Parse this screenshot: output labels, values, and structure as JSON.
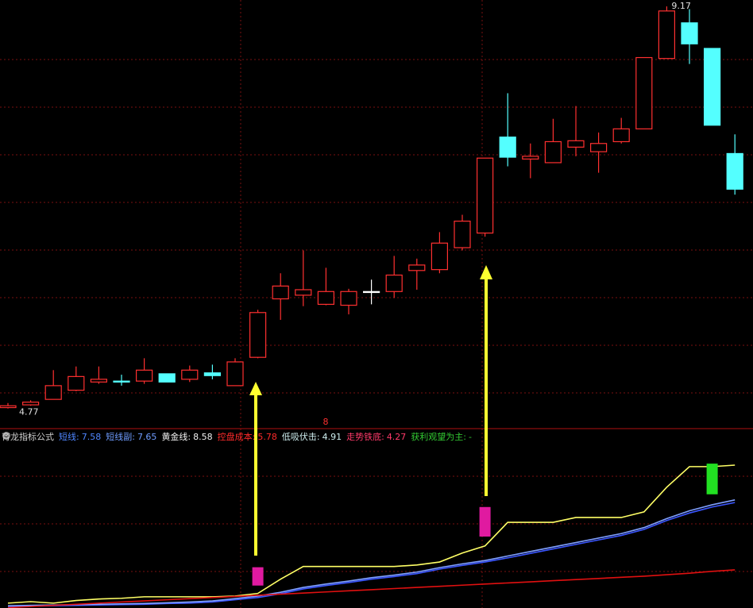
{
  "chart_data": {
    "type": "candlestick",
    "up_color": "#ff3030",
    "down_color": "#54ffff",
    "flat_color": "#ffffff",
    "ylim": [
      4.55,
      9.24
    ],
    "candles": [
      [
        4.78,
        4.83,
        4.77,
        4.8
      ],
      [
        4.81,
        4.86,
        4.8,
        4.84
      ],
      [
        4.87,
        5.19,
        4.87,
        5.02
      ],
      [
        4.97,
        5.23,
        4.96,
        5.12
      ],
      [
        5.06,
        5.23,
        5.04,
        5.09
      ],
      [
        5.07,
        5.14,
        5.02,
        5.06
      ],
      [
        5.07,
        5.32,
        5.04,
        5.19
      ],
      [
        5.15,
        5.15,
        5.06,
        5.06
      ],
      [
        5.09,
        5.24,
        5.06,
        5.19
      ],
      [
        5.16,
        5.25,
        5.09,
        5.13
      ],
      [
        5.02,
        5.32,
        5.02,
        5.28
      ],
      [
        5.33,
        5.85,
        5.32,
        5.82
      ],
      [
        5.97,
        6.25,
        5.74,
        6.11
      ],
      [
        6.01,
        6.5,
        5.89,
        6.07
      ],
      [
        5.91,
        6.31,
        5.9,
        6.05
      ],
      [
        5.9,
        6.08,
        5.8,
        6.05
      ],
      [
        6.05,
        6.18,
        5.91,
        6.05
      ],
      [
        6.05,
        6.44,
        5.98,
        6.23
      ],
      [
        6.28,
        6.41,
        6.07,
        6.34
      ],
      [
        6.29,
        6.7,
        6.25,
        6.58
      ],
      [
        6.53,
        6.89,
        6.5,
        6.82
      ],
      [
        6.69,
        7.51,
        6.65,
        7.51
      ],
      [
        7.74,
        8.22,
        7.42,
        7.52
      ],
      [
        7.5,
        7.67,
        7.29,
        7.53
      ],
      [
        7.46,
        7.94,
        7.46,
        7.69
      ],
      [
        7.63,
        8.08,
        7.53,
        7.7
      ],
      [
        7.58,
        7.79,
        7.35,
        7.67
      ],
      [
        7.69,
        7.95,
        7.67,
        7.83
      ],
      [
        7.83,
        8.61,
        7.83,
        8.61
      ],
      [
        8.6,
        9.17,
        8.6,
        9.12
      ],
      [
        8.99,
        9.14,
        8.54,
        8.76
      ],
      [
        8.71,
        8.71,
        7.87,
        7.87
      ],
      [
        7.56,
        7.77,
        7.11,
        7.17
      ]
    ],
    "high_index": 29,
    "low_index": 0,
    "marker": "8",
    "indicator": {
      "title": "育龙指标公式",
      "ylim": [
        4.76,
        9.45
      ],
      "readout": [
        {
          "name": "短线:",
          "value": 7.58,
          "color": "#4f86ff"
        },
        {
          "name": "短线副:",
          "value": 7.65,
          "color": "#6f9cff"
        },
        {
          "name": "黄金线:",
          "value": 8.58,
          "color": "#f0f0f0"
        },
        {
          "name": "控盘成本:",
          "value": 5.78,
          "color": "#ff2a2a"
        },
        {
          "name": "低吸伏击:",
          "value": 4.91,
          "color": "#cfeff0"
        },
        {
          "name": "走势铁底:",
          "value": 4.27,
          "color": "#ff3a6a"
        },
        {
          "name": "获利观望为主:",
          "value": "-",
          "color": "#33cc33"
        }
      ],
      "series": [
        {
          "color": "#3a55ff",
          "values": [
            4.8,
            4.81,
            4.82,
            4.83,
            4.84,
            4.85,
            4.86,
            4.88,
            4.89,
            4.92,
            4.98,
            5.04,
            5.14,
            5.27,
            5.36,
            5.44,
            5.53,
            5.6,
            5.68,
            5.8,
            5.9,
            5.99,
            6.1,
            6.22,
            6.34,
            6.46,
            6.58,
            6.7,
            6.86,
            7.1,
            7.3,
            7.46,
            7.58
          ]
        },
        {
          "color": "#7f9fff",
          "values": [
            4.82,
            4.83,
            4.84,
            4.85,
            4.86,
            4.87,
            4.88,
            4.9,
            4.92,
            4.95,
            5.01,
            5.08,
            5.18,
            5.31,
            5.4,
            5.48,
            5.57,
            5.64,
            5.72,
            5.84,
            5.94,
            6.03,
            6.15,
            6.27,
            6.39,
            6.51,
            6.63,
            6.75,
            6.91,
            7.15,
            7.36,
            7.52,
            7.65
          ]
        },
        {
          "color": "#ffff66",
          "values": [
            4.89,
            4.93,
            4.89,
            4.96,
            5.0,
            5.02,
            5.06,
            5.06,
            5.06,
            5.06,
            5.08,
            5.15,
            5.53,
            5.87,
            5.87,
            5.87,
            5.87,
            5.87,
            5.91,
            5.99,
            6.23,
            6.42,
            7.05,
            7.05,
            7.05,
            7.18,
            7.18,
            7.18,
            7.33,
            7.99,
            8.54,
            8.54,
            8.58
          ]
        },
        {
          "color": "#e01010",
          "values": [
            4.77,
            4.8,
            4.83,
            4.86,
            4.89,
            4.92,
            4.95,
            4.98,
            5.01,
            5.04,
            5.07,
            5.1,
            5.13,
            5.16,
            5.19,
            5.22,
            5.25,
            5.28,
            5.31,
            5.34,
            5.37,
            5.4,
            5.43,
            5.46,
            5.49,
            5.52,
            5.55,
            5.58,
            5.61,
            5.65,
            5.69,
            5.74,
            5.78
          ]
        }
      ],
      "signals": [
        {
          "index": 11,
          "top": 5.85,
          "bottom": 5.36,
          "color": "#e01aa0"
        },
        {
          "index": 21,
          "top": 7.46,
          "bottom": 6.67,
          "color": "#e01aa0"
        },
        {
          "index": 31,
          "top": 8.62,
          "bottom": 7.8,
          "color": "#22e022"
        }
      ]
    }
  }
}
